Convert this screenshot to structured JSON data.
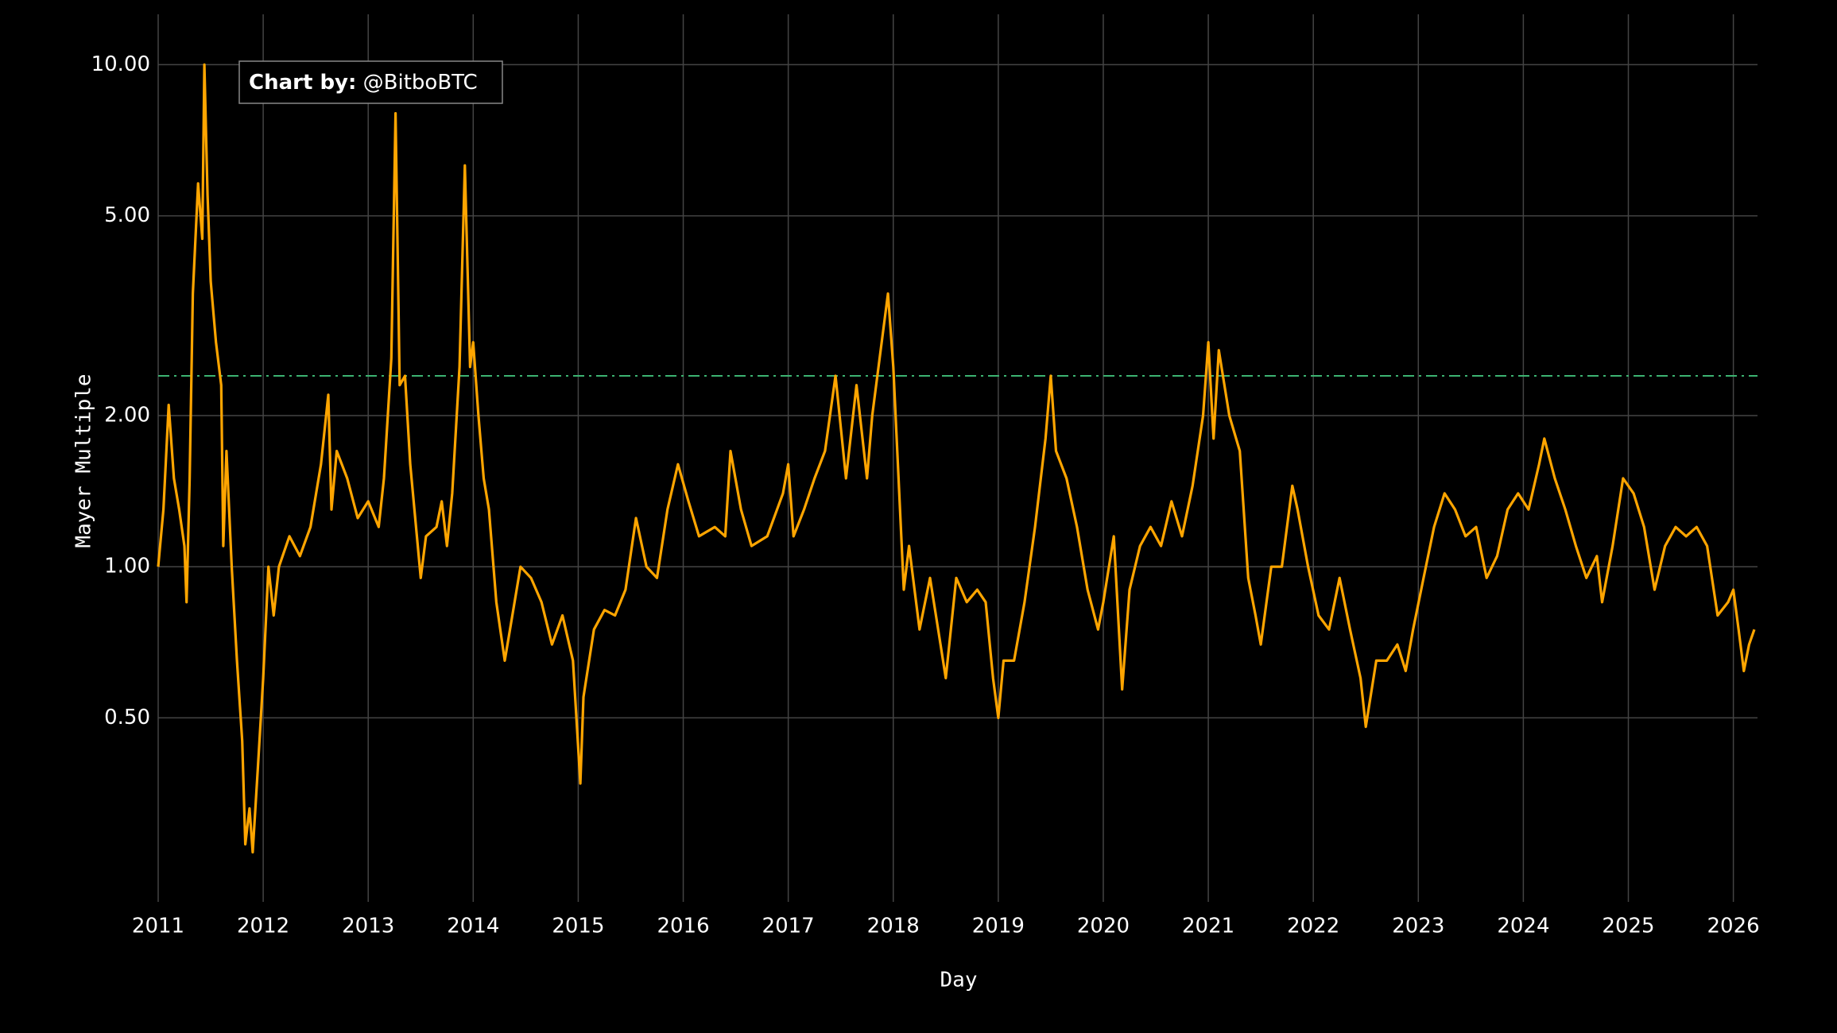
{
  "chart_data": {
    "type": "line",
    "xlabel": "Day",
    "ylabel": "Mayer Multiple",
    "annotation": {
      "bold": "Chart by:",
      "text": "@BitboBTC"
    },
    "log_y": true,
    "grid": true,
    "color": "#ffa500",
    "hline": {
      "value": 2.4,
      "color": "#3cb371",
      "dash": true
    },
    "xlim": [
      2011,
      2026.23
    ],
    "xticks": [
      2011,
      2012,
      2013,
      2014,
      2015,
      2016,
      2017,
      2018,
      2019,
      2020,
      2021,
      2022,
      2023,
      2024,
      2025,
      2026
    ],
    "ylim": [
      0.215,
      12.6
    ],
    "yticks": [
      {
        "value": 0.5,
        "label": "0.50"
      },
      {
        "value": 1,
        "label": "1.00"
      },
      {
        "value": 2,
        "label": "2.00"
      },
      {
        "value": 5,
        "label": "5.00"
      },
      {
        "value": 10,
        "label": "10.00"
      }
    ],
    "x": [
      2011.0,
      2011.05,
      2011.1,
      2011.15,
      2011.2,
      2011.25,
      2011.27,
      2011.3,
      2011.33,
      2011.38,
      2011.42,
      2011.44,
      2011.47,
      2011.5,
      2011.55,
      2011.6,
      2011.62,
      2011.65,
      2011.7,
      2011.75,
      2011.8,
      2011.83,
      2011.87,
      2011.9,
      2011.95,
      2012.0,
      2012.05,
      2012.1,
      2012.15,
      2012.25,
      2012.35,
      2012.45,
      2012.55,
      2012.62,
      2012.65,
      2012.7,
      2012.8,
      2012.9,
      2013.0,
      2013.1,
      2013.15,
      2013.22,
      2013.26,
      2013.3,
      2013.35,
      2013.4,
      2013.5,
      2013.55,
      2013.65,
      2013.7,
      2013.75,
      2013.8,
      2013.87,
      2013.92,
      2013.97,
      2014.0,
      2014.05,
      2014.1,
      2014.15,
      2014.22,
      2014.3,
      2014.35,
      2014.45,
      2014.55,
      2014.65,
      2014.75,
      2014.85,
      2014.95,
      2015.02,
      2015.05,
      2015.15,
      2015.25,
      2015.35,
      2015.45,
      2015.55,
      2015.65,
      2015.75,
      2015.85,
      2015.95,
      2016.05,
      2016.15,
      2016.3,
      2016.4,
      2016.45,
      2016.55,
      2016.65,
      2016.8,
      2016.95,
      2017.0,
      2017.05,
      2017.15,
      2017.25,
      2017.35,
      2017.45,
      2017.55,
      2017.65,
      2017.75,
      2017.8,
      2017.88,
      2017.95,
      2018.0,
      2018.05,
      2018.1,
      2018.15,
      2018.25,
      2018.35,
      2018.45,
      2018.5,
      2018.6,
      2018.7,
      2018.8,
      2018.88,
      2018.95,
      2019.0,
      2019.05,
      2019.15,
      2019.25,
      2019.35,
      2019.45,
      2019.5,
      2019.55,
      2019.65,
      2019.75,
      2019.85,
      2019.95,
      2020.0,
      2020.1,
      2020.18,
      2020.25,
      2020.35,
      2020.45,
      2020.55,
      2020.65,
      2020.75,
      2020.85,
      2020.95,
      2021.0,
      2021.05,
      2021.1,
      2021.2,
      2021.3,
      2021.38,
      2021.45,
      2021.5,
      2021.6,
      2021.7,
      2021.8,
      2021.85,
      2021.95,
      2022.05,
      2022.15,
      2022.25,
      2022.35,
      2022.45,
      2022.5,
      2022.6,
      2022.7,
      2022.8,
      2022.88,
      2022.95,
      2023.05,
      2023.15,
      2023.25,
      2023.35,
      2023.45,
      2023.55,
      2023.65,
      2023.75,
      2023.85,
      2023.95,
      2024.05,
      2024.15,
      2024.2,
      2024.3,
      2024.4,
      2024.5,
      2024.6,
      2024.7,
      2024.75,
      2024.85,
      2024.95,
      2025.05,
      2025.15,
      2025.25,
      2025.35,
      2025.45,
      2025.55,
      2025.65,
      2025.75,
      2025.85,
      2025.95,
      2026.0,
      2026.05,
      2026.1,
      2026.15,
      2026.2
    ],
    "values": [
      1.0,
      1.3,
      2.1,
      1.5,
      1.3,
      1.1,
      0.85,
      1.5,
      3.5,
      5.8,
      4.5,
      10.0,
      5.5,
      3.7,
      2.8,
      2.3,
      1.1,
      1.7,
      1.0,
      0.65,
      0.45,
      0.28,
      0.33,
      0.27,
      0.4,
      0.6,
      1.0,
      0.8,
      1.0,
      1.15,
      1.05,
      1.2,
      1.6,
      2.2,
      1.3,
      1.7,
      1.5,
      1.25,
      1.35,
      1.2,
      1.5,
      2.6,
      8.0,
      2.3,
      2.4,
      1.6,
      0.95,
      1.15,
      1.2,
      1.35,
      1.1,
      1.4,
      2.5,
      6.3,
      2.5,
      2.8,
      2.0,
      1.5,
      1.3,
      0.85,
      0.65,
      0.75,
      1.0,
      0.95,
      0.85,
      0.7,
      0.8,
      0.65,
      0.37,
      0.55,
      0.75,
      0.82,
      0.8,
      0.9,
      1.25,
      1.0,
      0.95,
      1.3,
      1.6,
      1.35,
      1.15,
      1.2,
      1.15,
      1.7,
      1.3,
      1.1,
      1.15,
      1.4,
      1.6,
      1.15,
      1.3,
      1.5,
      1.7,
      2.4,
      1.5,
      2.3,
      1.5,
      2.0,
      2.7,
      3.5,
      2.5,
      1.5,
      0.9,
      1.1,
      0.75,
      0.95,
      0.7,
      0.6,
      0.95,
      0.85,
      0.9,
      0.85,
      0.6,
      0.5,
      0.65,
      0.65,
      0.85,
      1.2,
      1.8,
      2.4,
      1.7,
      1.5,
      1.2,
      0.9,
      0.75,
      0.85,
      1.15,
      0.57,
      0.9,
      1.1,
      1.2,
      1.1,
      1.35,
      1.15,
      1.45,
      2.0,
      2.8,
      1.8,
      2.7,
      2.0,
      1.7,
      0.95,
      0.8,
      0.7,
      1.0,
      1.0,
      1.45,
      1.3,
      1.0,
      0.8,
      0.75,
      0.95,
      0.75,
      0.6,
      0.48,
      0.65,
      0.65,
      0.7,
      0.62,
      0.75,
      0.95,
      1.2,
      1.4,
      1.3,
      1.15,
      1.2,
      0.95,
      1.05,
      1.3,
      1.4,
      1.3,
      1.6,
      1.8,
      1.5,
      1.3,
      1.1,
      0.95,
      1.05,
      0.85,
      1.1,
      1.5,
      1.4,
      1.2,
      0.9,
      1.1,
      1.2,
      1.15,
      1.2,
      1.1,
      0.8,
      0.85,
      0.9,
      0.75,
      0.62,
      0.7,
      0.75
    ]
  }
}
